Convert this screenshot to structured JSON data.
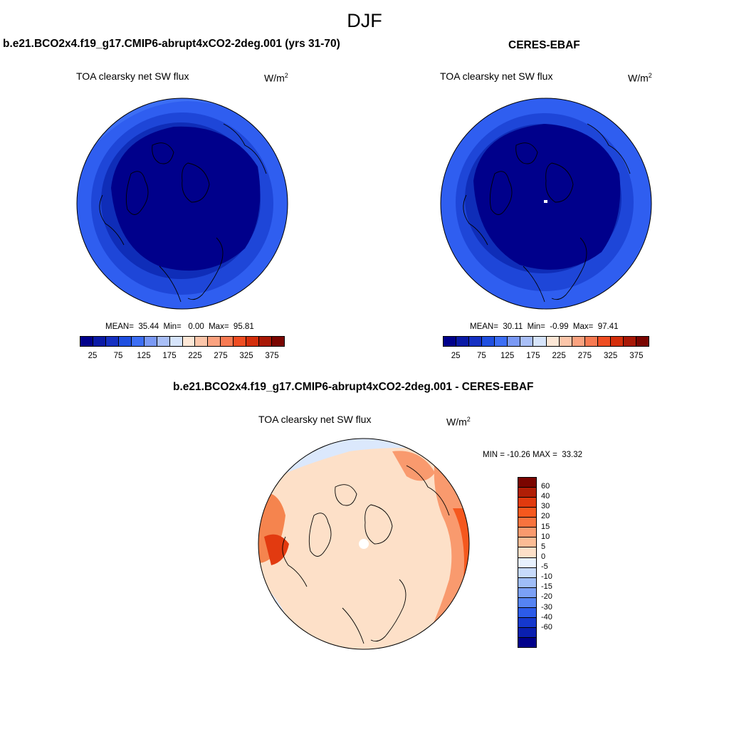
{
  "title": "DJF",
  "panels": [
    {
      "title": "b.e21.BCO2x4.f19_g17.CMIP6-abrupt4xCO2-2deg.001 (yrs 31-70)",
      "variable": "TOA clearsky net SW flux",
      "units": "W/m",
      "units_sup": "2",
      "stats": "MEAN=  35.44  Min=   0.00  Max=  95.81",
      "mean": 35.44,
      "min": 0.0,
      "max": 95.81
    },
    {
      "title": "CERES-EBAF",
      "variable": "TOA clearsky net SW flux",
      "units": "W/m",
      "units_sup": "2",
      "stats": "MEAN=  30.11  Min=  -0.99  Max=  97.41",
      "mean": 30.11,
      "min": -0.99,
      "max": 97.41
    },
    {
      "title": "b.e21.BCO2x4.f19_g17.CMIP6-abrupt4xCO2-2deg.001 - CERES-EBAF",
      "variable": "TOA clearsky net SW flux",
      "units": "W/m",
      "units_sup": "2",
      "stats": "MIN = -10.26 MAX =  33.32",
      "min": -10.26,
      "max": 33.32
    }
  ],
  "colorbar_main": {
    "colors": [
      "#00008b",
      "#0a1aa6",
      "#1530c2",
      "#1f4fe0",
      "#3c6ef5",
      "#7a99f5",
      "#a9bff7",
      "#d6e4fb",
      "#fde7d6",
      "#fcc6aa",
      "#fba27f",
      "#f77a52",
      "#ef4d22",
      "#d42e0b",
      "#a81806",
      "#7a0500"
    ],
    "tick_labels": [
      "25",
      "75",
      "125",
      "175",
      "225",
      "275",
      "325",
      "375"
    ]
  },
  "colorbar_diff": {
    "colors": [
      "#7a0500",
      "#b01e06",
      "#e03a0e",
      "#f5581e",
      "#f7733e",
      "#f99a6e",
      "#fbbc95",
      "#fde0c8",
      "#e8f1fd",
      "#c7dafb",
      "#9fbdf8",
      "#7ba0f6",
      "#5583f2",
      "#2c5be8",
      "#1538cd",
      "#0a1fb0",
      "#00008b"
    ],
    "tick_labels": [
      "60",
      "40",
      "30",
      "20",
      "15",
      "10",
      "5",
      "0",
      "-5",
      "-10",
      "-15",
      "-20",
      "-30",
      "-40",
      "-60"
    ]
  }
}
